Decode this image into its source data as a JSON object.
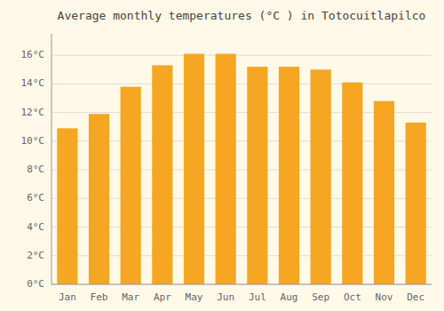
{
  "chart_data": {
    "type": "bar",
    "title": "Average monthly temperatures (°C ) in Totocuitlapilco",
    "categories": [
      "Jan",
      "Feb",
      "Mar",
      "Apr",
      "May",
      "Jun",
      "Jul",
      "Aug",
      "Sep",
      "Oct",
      "Nov",
      "Dec"
    ],
    "values": [
      10.9,
      11.9,
      13.8,
      15.3,
      16.1,
      16.1,
      15.2,
      15.2,
      15.0,
      14.1,
      12.8,
      11.3
    ],
    "color": "#F5A623",
    "ylim": [
      0,
      17.5
    ],
    "yticks": [
      {
        "value": 0,
        "label": "0°C"
      },
      {
        "value": 2,
        "label": "2°C"
      },
      {
        "value": 4,
        "label": "4°C"
      },
      {
        "value": 6,
        "label": "6°C"
      },
      {
        "value": 8,
        "label": "8°C"
      },
      {
        "value": 10,
        "label": "10°C"
      },
      {
        "value": 12,
        "label": "12°C"
      },
      {
        "value": 14,
        "label": "14°C"
      },
      {
        "value": 16,
        "label": "16°C"
      }
    ],
    "grid": true
  }
}
